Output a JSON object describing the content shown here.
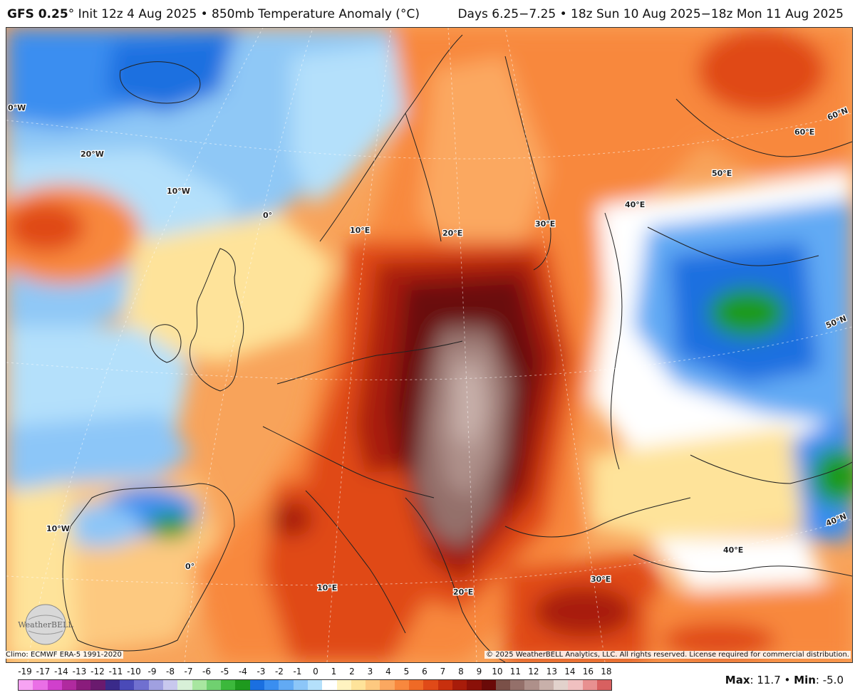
{
  "header": {
    "model": "GFS 0.25",
    "left_text": "° Init 12z 4 Aug 2025 • 850mb Temperature Anomaly (°C)",
    "right_text": "Days 6.25−7.25 • 18z Sun 10 Aug 2025−18z Mon 11 Aug 2025"
  },
  "map": {
    "graticule_labels": [
      "0°W",
      "20°W",
      "10°W",
      "0°",
      "10°E",
      "20°E",
      "30°E",
      "40°E",
      "50°E",
      "60°E",
      "60°N",
      "50°N",
      "40°N",
      "10°W",
      "0°",
      "10°E",
      "20°E",
      "30°E",
      "40°E"
    ],
    "anomaly_max_region": "central Europe (Poland–Hungary–Balkans)",
    "anomaly_min_region": "western Russia"
  },
  "footer": {
    "climo": "Climo: ECMWF ERA-5 1991-2020",
    "copyright": "© 2025 WeatherBELL Analytics, LLC. All rights reserved. License required for commercial distribution.",
    "logo_text": "WeatherBELL"
  },
  "scale": {
    "labels": [
      "-19",
      "-17",
      "-14",
      "-13",
      "-12",
      "-11",
      "-10",
      "-9",
      "-8",
      "-7",
      "-6",
      "-5",
      "-4",
      "-3",
      "-2",
      "-1",
      "0",
      "1",
      "2",
      "3",
      "4",
      "5",
      "6",
      "7",
      "8",
      "9",
      "10",
      "11",
      "12",
      "13",
      "14",
      "16",
      "18"
    ],
    "colors": [
      "#f7a3f3",
      "#ea6fe6",
      "#d040cc",
      "#b02a9f",
      "#8a1c7c",
      "#6a1a6e",
      "#3a2a8a",
      "#4a4ab8",
      "#7070d0",
      "#a0a0e0",
      "#c8c8ee",
      "#d8f0d8",
      "#a8e6a0",
      "#70d070",
      "#3cb83c",
      "#1e9a1e",
      "#1a6fe0",
      "#3a8ef0",
      "#62aaf4",
      "#8cc6f8",
      "#b4e0fb",
      "#ffffff",
      "#fff3c0",
      "#fee39a",
      "#fdc980",
      "#fba860",
      "#f8883e",
      "#ef6a26",
      "#e04a18",
      "#c8300e",
      "#a81c0a",
      "#8a1008",
      "#6a0a08",
      "#7a5048",
      "#94706a",
      "#ae908a",
      "#c8b0aa",
      "#e2d2cc",
      "#f0c0c0",
      "#e89090",
      "#d86060"
    ]
  },
  "stats": {
    "max_label": "Max",
    "max_value": "11.7",
    "min_label": "Min",
    "min_value": "-5.0"
  }
}
